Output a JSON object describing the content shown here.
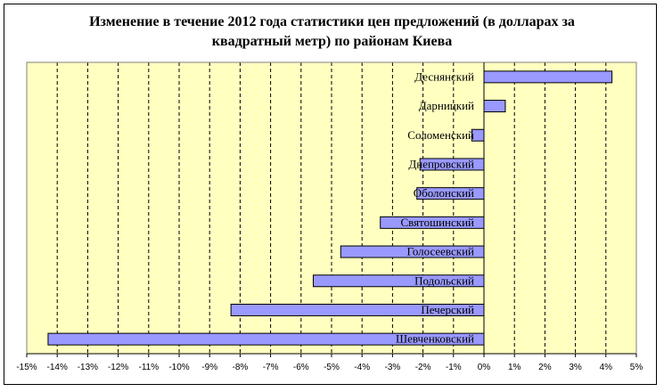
{
  "chart_data": {
    "type": "bar",
    "orientation": "horizontal",
    "title_line1": "Изменение в течение 2012 года статистики цен предложений (в долларах за",
    "title_line2": "квадратный метр) по районам Киева",
    "categories": [
      "Деснянский",
      "Дарницкий",
      "Соломенский",
      "Днепровский",
      "Оболонский",
      "Святошинский",
      "Голосеевский",
      "Подольский",
      "Печерский",
      "Шевченковский"
    ],
    "values": [
      4.2,
      0.7,
      -0.4,
      -2.1,
      -2.2,
      -3.4,
      -4.7,
      -5.6,
      -8.3,
      -14.3
    ],
    "xlim": [
      -15,
      5
    ],
    "xticks": [
      "-15%",
      "-14%",
      "-13%",
      "-12%",
      "-11%",
      "-10%",
      "-9%",
      "-8%",
      "-7%",
      "-6%",
      "-5%",
      "-4%",
      "-3%",
      "-2%",
      "-1%",
      "0%",
      "1%",
      "2%",
      "3%",
      "4%",
      "5%"
    ],
    "grid": true,
    "legend": "none",
    "colors": {
      "plot_bg": "#ffffc0",
      "bar_fill": "#9999ff",
      "bar_stroke": "#000000",
      "grid": "#000000"
    }
  }
}
